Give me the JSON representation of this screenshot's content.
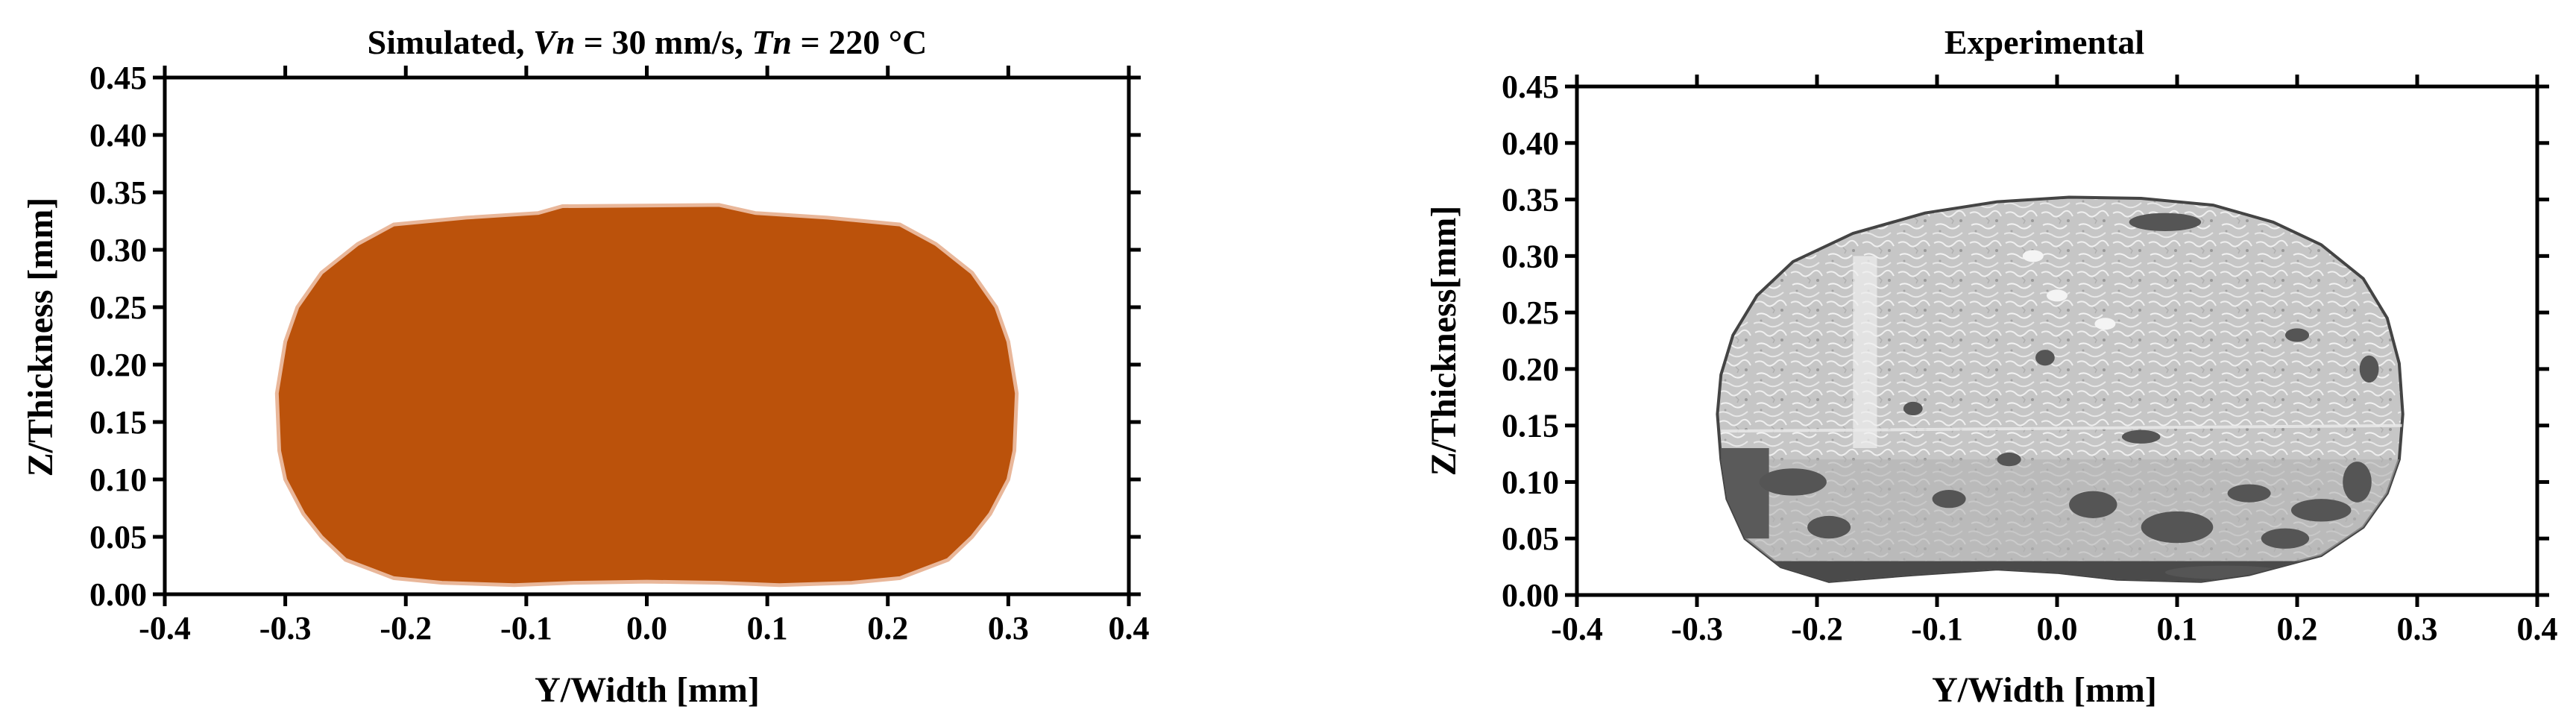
{
  "figure": {
    "panels": [
      {
        "id": "simulated",
        "title_parts": [
          {
            "text": "Simulated, ",
            "italic": false
          },
          {
            "text": "Vn",
            "italic": true
          },
          {
            "text": " = 30 mm/s, ",
            "italic": false
          },
          {
            "text": "Tn",
            "italic": true
          },
          {
            "text": " = 220 °C",
            "italic": false
          }
        ],
        "xlabel": "Y/Width  [mm]",
        "ylabel": "Z/Thickness  [mm]"
      },
      {
        "id": "experimental",
        "title_parts": [
          {
            "text": "Experimental",
            "italic": false
          }
        ],
        "xlabel": "Y/Width  [mm]",
        "ylabel": "Z/Thickness[mm]"
      }
    ]
  },
  "chart_data": [
    {
      "type": "area",
      "title": "Simulated, Vn = 30 mm/s, Tn = 220 °C",
      "xlabel": "Y/Width  [mm]",
      "ylabel": "Z/Thickness  [mm]",
      "xlim": [
        -0.4,
        0.4
      ],
      "ylim": [
        0.0,
        0.45
      ],
      "xticks": [
        "-0.4",
        "-0.3",
        "-0.2",
        "-0.1",
        "0.0",
        "0.1",
        "0.2",
        "0.3",
        "0.4"
      ],
      "yticks": [
        "0.00",
        "0.05",
        "0.10",
        "0.15",
        "0.20",
        "0.25",
        "0.30",
        "0.35",
        "0.40",
        "0.45"
      ],
      "grid": false,
      "fill_color": "#bb520b",
      "series": [
        {
          "outline": [
            [
              -0.3,
              0.22
            ],
            [
              -0.29,
              0.25
            ],
            [
              -0.27,
              0.28
            ],
            [
              -0.24,
              0.305
            ],
            [
              -0.21,
              0.322
            ],
            [
              -0.15,
              0.328
            ],
            [
              -0.09,
              0.332
            ],
            [
              -0.07,
              0.338
            ],
            [
              0.06,
              0.339
            ],
            [
              0.09,
              0.332
            ],
            [
              0.15,
              0.328
            ],
            [
              0.21,
              0.322
            ],
            [
              0.24,
              0.305
            ],
            [
              0.27,
              0.28
            ],
            [
              0.29,
              0.25
            ],
            [
              0.3,
              0.22
            ],
            [
              0.307,
              0.175
            ],
            [
              0.305,
              0.125
            ],
            [
              0.3,
              0.1
            ],
            [
              0.285,
              0.07
            ],
            [
              0.27,
              0.05
            ],
            [
              0.25,
              0.03
            ],
            [
              0.21,
              0.014
            ],
            [
              0.17,
              0.01
            ],
            [
              0.11,
              0.008
            ],
            [
              0.06,
              0.01
            ],
            [
              0.0,
              0.011
            ],
            [
              -0.06,
              0.01
            ],
            [
              -0.11,
              0.008
            ],
            [
              -0.17,
              0.01
            ],
            [
              -0.21,
              0.014
            ],
            [
              -0.25,
              0.03
            ],
            [
              -0.27,
              0.05
            ],
            [
              -0.285,
              0.07
            ],
            [
              -0.3,
              0.1
            ],
            [
              -0.305,
              0.125
            ],
            [
              -0.307,
              0.175
            ]
          ]
        }
      ]
    },
    {
      "type": "area",
      "title": "Experimental",
      "xlabel": "Y/Width  [mm]",
      "ylabel": "Z/Thickness[mm]",
      "xlim": [
        -0.4,
        0.4
      ],
      "ylim": [
        0.0,
        0.45
      ],
      "xticks": [
        "-0.4",
        "-0.3",
        "-0.2",
        "-0.1",
        "0.0",
        "0.1",
        "0.2",
        "0.3",
        "0.4"
      ],
      "yticks": [
        "0.00",
        "0.05",
        "0.10",
        "0.15",
        "0.20",
        "0.25",
        "0.30",
        "0.35",
        "0.40",
        "0.45"
      ],
      "grid": false,
      "fill_color": "#c9c9c9",
      "series": [
        {
          "outline": [
            [
              -0.28,
              0.12
            ],
            [
              -0.283,
              0.16
            ],
            [
              -0.28,
              0.195
            ],
            [
              -0.27,
              0.23
            ],
            [
              -0.25,
              0.265
            ],
            [
              -0.22,
              0.295
            ],
            [
              -0.17,
              0.32
            ],
            [
              -0.11,
              0.338
            ],
            [
              -0.05,
              0.348
            ],
            [
              0.01,
              0.352
            ],
            [
              0.07,
              0.351
            ],
            [
              0.13,
              0.345
            ],
            [
              0.18,
              0.33
            ],
            [
              0.22,
              0.31
            ],
            [
              0.255,
              0.28
            ],
            [
              0.275,
              0.245
            ],
            [
              0.285,
              0.205
            ],
            [
              0.288,
              0.16
            ],
            [
              0.285,
              0.12
            ],
            [
              0.275,
              0.09
            ],
            [
              0.255,
              0.06
            ],
            [
              0.22,
              0.035
            ],
            [
              0.16,
              0.018
            ],
            [
              0.12,
              0.012
            ],
            [
              0.05,
              0.014
            ],
            [
              0.0,
              0.02
            ],
            [
              -0.05,
              0.023
            ],
            [
              -0.12,
              0.018
            ],
            [
              -0.19,
              0.012
            ],
            [
              -0.23,
              0.025
            ],
            [
              -0.26,
              0.05
            ],
            [
              -0.275,
              0.085
            ]
          ]
        }
      ]
    }
  ]
}
